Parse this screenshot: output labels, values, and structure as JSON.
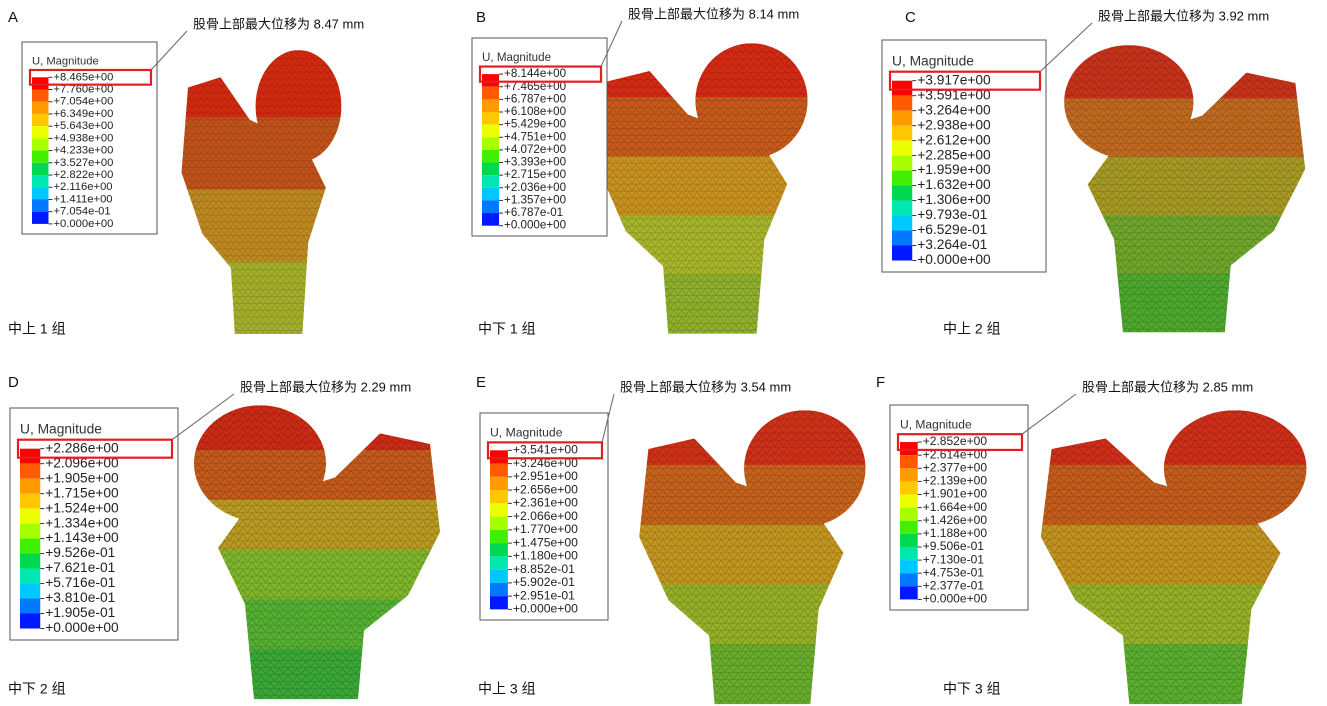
{
  "panels": [
    {
      "letter": "A",
      "annotation": "股骨上部最大位移为 8.47 mm",
      "group": "中上 1 组",
      "legend": {
        "title": "U, Magnitude",
        "values": [
          "+8.465e+00",
          "+7.760e+00",
          "+7.054e+00",
          "+6.349e+00",
          "+5.643e+00",
          "+4.938e+00",
          "+4.233e+00",
          "+3.527e+00",
          "+2.822e+00",
          "+2.116e+00",
          "+1.411e+00",
          "+7.054e-01",
          "+0.000e+00"
        ]
      }
    },
    {
      "letter": "B",
      "annotation": "股骨上部最大位移为 8.14 mm",
      "group": "中下 1 组",
      "legend": {
        "title": "U, Magnitude",
        "values": [
          "+8.144e+00",
          "+7.465e+00",
          "+6.787e+00",
          "+6.108e+00",
          "+5.429e+00",
          "+4.751e+00",
          "+4.072e+00",
          "+3.393e+00",
          "+2.715e+00",
          "+2.036e+00",
          "+1.357e+00",
          "+6.787e-01",
          "+0.000e+00"
        ]
      }
    },
    {
      "letter": "C",
      "annotation": "股骨上部最大位移为 3.92 mm",
      "group": "中上 2 组",
      "legend": {
        "title": "U, Magnitude",
        "values": [
          "+3.917e+00",
          "+3.591e+00",
          "+3.264e+00",
          "+2.938e+00",
          "+2.612e+00",
          "+2.285e+00",
          "+1.959e+00",
          "+1.632e+00",
          "+1.306e+00",
          "+9.793e-01",
          "+6.529e-01",
          "+3.264e-01",
          "+0.000e+00"
        ]
      }
    },
    {
      "letter": "D",
      "annotation": "股骨上部最大位移为 2.29 mm",
      "group": "中下 2 组",
      "legend": {
        "title": "U, Magnitude",
        "values": [
          "+2.286e+00",
          "+2.096e+00",
          "+1.905e+00",
          "+1.715e+00",
          "+1.524e+00",
          "+1.334e+00",
          "+1.143e+00",
          "+9.526e-01",
          "+7.621e-01",
          "+5.716e-01",
          "+3.810e-01",
          "+1.905e-01",
          "+0.000e+00"
        ]
      }
    },
    {
      "letter": "E",
      "annotation": "股骨上部最大位移为 3.54 mm",
      "group": "中上 3 组",
      "legend": {
        "title": "U, Magnitude",
        "values": [
          "+3.541e+00",
          "+3.246e+00",
          "+2.951e+00",
          "+2.656e+00",
          "+2.361e+00",
          "+2.066e+00",
          "+1.770e+00",
          "+1.475e+00",
          "+1.180e+00",
          "+8.852e-01",
          "+5.902e-01",
          "+2.951e-01",
          "+0.000e+00"
        ]
      }
    },
    {
      "letter": "F",
      "annotation": "股骨上部最大位移为 2.85 mm",
      "group": "中下 3 组",
      "legend": {
        "title": "U, Magnitude",
        "values": [
          "+2.852e+00",
          "+2.614e+00",
          "+2.377e+00",
          "+2.139e+00",
          "+1.901e+00",
          "+1.664e+00",
          "+1.426e+00",
          "+1.188e+00",
          "+9.506e-01",
          "+7.130e-01",
          "+4.753e-01",
          "+2.377e-01",
          "+0.000e+00"
        ]
      }
    }
  ]
}
